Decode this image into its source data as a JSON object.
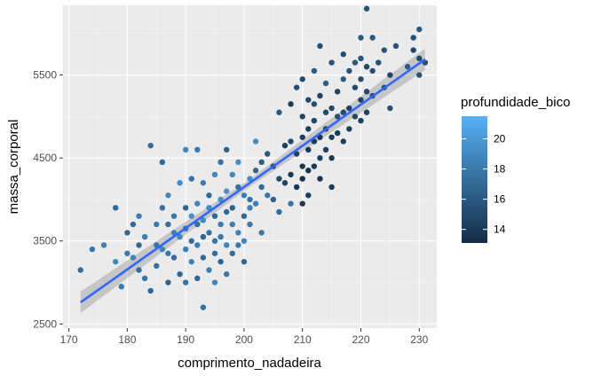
{
  "chart_data": {
    "type": "scatter",
    "xlabel": "comprimento_nadadeira",
    "ylabel": "massa_corporal",
    "xlim": [
      169,
      233
    ],
    "ylim": [
      2450,
      6340
    ],
    "x_ticks": [
      170,
      180,
      190,
      200,
      210,
      220,
      230
    ],
    "y_ticks": [
      2500,
      3500,
      4500,
      5500
    ],
    "x_tick_labels": [
      "170",
      "180",
      "190",
      "200",
      "210",
      "220",
      "230"
    ],
    "y_tick_labels": [
      "2500",
      "3500",
      "4500",
      "5500"
    ],
    "grid": true,
    "background": "#ebebeb",
    "legend": {
      "title": "profundidade_bico",
      "position": "right",
      "ticks": [
        14,
        16,
        18,
        20
      ],
      "tick_labels": [
        "14",
        "16",
        "18",
        "20"
      ],
      "range": [
        13.1,
        21.5
      ],
      "low_color": "#132b43",
      "high_color": "#56b1f7"
    },
    "smooth_line": {
      "method": "linear",
      "x": [
        172,
        231
      ],
      "y": [
        2760,
        5690
      ],
      "se_halfwidth": [
        130,
        45,
        130
      ],
      "se_x": [
        172,
        201,
        231
      ],
      "color": "#3366ff",
      "band_color": "#999999"
    },
    "points": [
      [
        172,
        3150,
        17.2
      ],
      [
        174,
        3400,
        17.8
      ],
      [
        176,
        3450,
        18.5
      ],
      [
        178,
        3250,
        18.9
      ],
      [
        178,
        3900,
        17.0
      ],
      [
        179,
        2950,
        18.0
      ],
      [
        180,
        3350,
        17.9
      ],
      [
        180,
        3600,
        16.9
      ],
      [
        181,
        3700,
        17.1
      ],
      [
        181,
        3300,
        18.6
      ],
      [
        182,
        3150,
        17.3
      ],
      [
        182,
        3800,
        18.2
      ],
      [
        182,
        3450,
        16.8
      ],
      [
        183,
        3050,
        17.6
      ],
      [
        183,
        3550,
        18.3
      ],
      [
        184,
        4650,
        17.2
      ],
      [
        184,
        2900,
        16.8
      ],
      [
        185,
        3200,
        17.5
      ],
      [
        185,
        3700,
        18.1
      ],
      [
        185,
        3450,
        17.8
      ],
      [
        186,
        3400,
        18.6
      ],
      [
        186,
        4450,
        16.9
      ],
      [
        186,
        3900,
        17.4
      ],
      [
        187,
        3350,
        18.0
      ],
      [
        187,
        3700,
        17.3
      ],
      [
        187,
        3000,
        16.6
      ],
      [
        187,
        4050,
        19.0
      ],
      [
        188,
        3600,
        18.4
      ],
      [
        188,
        3300,
        17.2
      ],
      [
        188,
        3800,
        17.9
      ],
      [
        189,
        3550,
        18.7
      ],
      [
        189,
        3100,
        17.0
      ],
      [
        189,
        4200,
        19.2
      ],
      [
        190,
        3650,
        17.6
      ],
      [
        190,
        3400,
        18.3
      ],
      [
        190,
        3900,
        16.5
      ],
      [
        190,
        3000,
        17.5
      ],
      [
        190,
        4600,
        18.8
      ],
      [
        191,
        3800,
        19.6
      ],
      [
        191,
        3500,
        17.1
      ],
      [
        191,
        4250,
        17.7
      ],
      [
        191,
        3250,
        18.5
      ],
      [
        192,
        3700,
        17.4
      ],
      [
        192,
        3950,
        18.6
      ],
      [
        192,
        3050,
        16.7
      ],
      [
        192,
        4600,
        17.9
      ],
      [
        192,
        3450,
        18.1
      ],
      [
        193,
        3550,
        16.6
      ],
      [
        193,
        3750,
        19.0
      ],
      [
        193,
        4200,
        18.2
      ],
      [
        193,
        2700,
        17.3
      ],
      [
        193,
        3300,
        17.0
      ],
      [
        194,
        3900,
        19.1
      ],
      [
        194,
        3600,
        17.5
      ],
      [
        194,
        4050,
        16.9
      ],
      [
        194,
        3150,
        18.4
      ],
      [
        195,
        3500,
        17.8
      ],
      [
        195,
        4300,
        18.8
      ],
      [
        195,
        3800,
        16.8
      ],
      [
        195,
        3350,
        17.2
      ],
      [
        195,
        3000,
        18.7
      ],
      [
        196,
        3700,
        18.3
      ],
      [
        196,
        4000,
        19.3
      ],
      [
        196,
        3250,
        16.7
      ],
      [
        196,
        4450,
        17.5
      ],
      [
        196,
        3550,
        18.0
      ],
      [
        197,
        3850,
        17.0
      ],
      [
        197,
        4100,
        19.5
      ],
      [
        197,
        3450,
        18.6
      ],
      [
        197,
        4600,
        16.6
      ],
      [
        197,
        3100,
        17.9
      ],
      [
        198,
        3700,
        18.2
      ],
      [
        198,
        4300,
        18.9
      ],
      [
        198,
        3350,
        17.1
      ],
      [
        198,
        3900,
        16.5
      ],
      [
        199,
        3600,
        18.4
      ],
      [
        199,
        4150,
        17.4
      ],
      [
        199,
        3450,
        18.0
      ],
      [
        199,
        4450,
        19.4
      ],
      [
        200,
        3800,
        17.0
      ],
      [
        200,
        3500,
        18.9
      ],
      [
        200,
        4050,
        18.3
      ],
      [
        200,
        3250,
        16.7
      ],
      [
        201,
        4250,
        19.1
      ],
      [
        201,
        3700,
        17.9
      ],
      [
        201,
        3900,
        18.6
      ],
      [
        201,
        4000,
        17.6
      ],
      [
        202,
        4350,
        16.8
      ],
      [
        202,
        3950,
        18.5
      ],
      [
        202,
        4700,
        19.2
      ],
      [
        203,
        4150,
        17.1
      ],
      [
        203,
        3600,
        18.0
      ],
      [
        203,
        4450,
        16.4
      ],
      [
        204,
        4050,
        17.9
      ],
      [
        204,
        4550,
        15.8
      ],
      [
        205,
        4400,
        14.9
      ],
      [
        205,
        4000,
        16.5
      ],
      [
        206,
        3850,
        17.2
      ],
      [
        206,
        4250,
        15.1
      ],
      [
        206,
        5050,
        16.0
      ],
      [
        207,
        4650,
        14.4
      ],
      [
        207,
        4200,
        14.7
      ],
      [
        208,
        4700,
        15.2
      ],
      [
        208,
        4300,
        13.9
      ],
      [
        208,
        5150,
        14.1
      ],
      [
        208,
        3950,
        17.6
      ],
      [
        209,
        4550,
        14.6
      ],
      [
        209,
        4150,
        13.8
      ],
      [
        209,
        5350,
        15.3
      ],
      [
        210,
        4750,
        14.3
      ],
      [
        210,
        4400,
        13.9
      ],
      [
        210,
        5000,
        14.6
      ],
      [
        210,
        4250,
        13.5
      ],
      [
        210,
        3950,
        14.0
      ],
      [
        210,
        5450,
        15.1
      ],
      [
        211,
        4600,
        14.0
      ],
      [
        211,
        4850,
        14.4
      ],
      [
        211,
        4350,
        13.6
      ],
      [
        211,
        5200,
        14.9
      ],
      [
        211,
        4050,
        14.2
      ],
      [
        212,
        4700,
        14.1
      ],
      [
        212,
        5150,
        15.3
      ],
      [
        212,
        4400,
        13.9
      ],
      [
        212,
        5550,
        16.1
      ],
      [
        212,
        4950,
        14.8
      ],
      [
        213,
        4500,
        14.4
      ],
      [
        213,
        4750,
        13.8
      ],
      [
        213,
        5250,
        14.5
      ],
      [
        213,
        4250,
        13.7
      ],
      [
        213,
        5850,
        15.5
      ],
      [
        214,
        4850,
        14.2
      ],
      [
        214,
        5050,
        15.0
      ],
      [
        214,
        4600,
        14.5
      ],
      [
        214,
        5400,
        16.3
      ],
      [
        215,
        4750,
        14.1
      ],
      [
        215,
        5100,
        14.9
      ],
      [
        215,
        4500,
        13.9
      ],
      [
        215,
        5650,
        15.6
      ],
      [
        215,
        4150,
        14.3
      ],
      [
        216,
        5000,
        15.4
      ],
      [
        216,
        5300,
        14.7
      ],
      [
        216,
        4800,
        14.0
      ],
      [
        217,
        5050,
        15.0
      ],
      [
        217,
        5450,
        16.0
      ],
      [
        217,
        4700,
        14.3
      ],
      [
        217,
        5750,
        15.2
      ],
      [
        218,
        5100,
        14.5
      ],
      [
        218,
        5550,
        15.7
      ],
      [
        218,
        4850,
        14.2
      ],
      [
        219,
        5350,
        15.0
      ],
      [
        219,
        5000,
        14.8
      ],
      [
        219,
        5650,
        16.1
      ],
      [
        220,
        5200,
        14.6
      ],
      [
        220,
        5700,
        15.7
      ],
      [
        220,
        5450,
        15.2
      ],
      [
        220,
        4950,
        14.4
      ],
      [
        220,
        5950,
        15.9
      ],
      [
        221,
        5300,
        15.0
      ],
      [
        221,
        6300,
        15.7
      ],
      [
        221,
        5600,
        14.8
      ],
      [
        221,
        5050,
        14.5
      ],
      [
        222,
        5550,
        15.4
      ],
      [
        222,
        5250,
        15.0
      ],
      [
        222,
        5950,
        16.0
      ],
      [
        223,
        5650,
        15.5
      ],
      [
        224,
        5350,
        15.2
      ],
      [
        224,
        5800,
        15.7
      ],
      [
        225,
        5500,
        14.9
      ],
      [
        225,
        5100,
        15.3
      ],
      [
        226,
        5850,
        15.6
      ],
      [
        228,
        5600,
        16.2
      ],
      [
        229,
        5950,
        15.5
      ],
      [
        229,
        5800,
        15.0
      ],
      [
        230,
        6050,
        16.1
      ],
      [
        230,
        5700,
        14.9
      ],
      [
        230,
        5500,
        15.7
      ],
      [
        231,
        5650,
        15.3
      ]
    ]
  }
}
